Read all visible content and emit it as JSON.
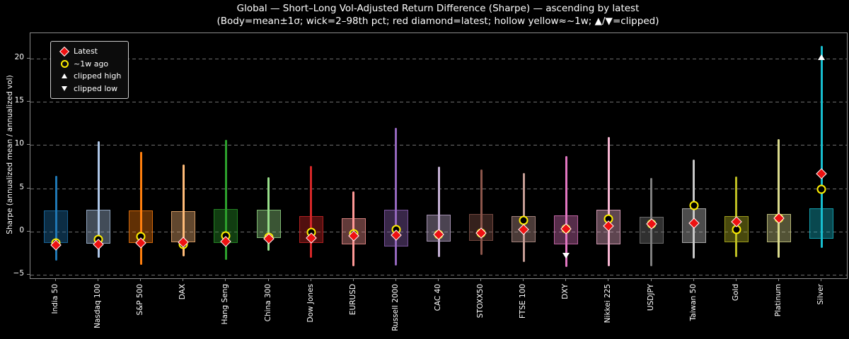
{
  "chart_data": {
    "type": "candlestick",
    "title": "Global — Short–Long Vol-Adjusted Return Difference (Sharpe) — ascending by latest",
    "subtitle": "(Body=mean±1σ; wick=2–98th pct; red diamond=latest; hollow yellow≈~1w; ▲/▼=clipped)",
    "ylabel": "Sharpe (annualized mean / annualized vol)",
    "ylim": [
      -5.4,
      22.9
    ],
    "yticks": [
      -5,
      0,
      5,
      10,
      15,
      20
    ],
    "ytick_labels": [
      "−5",
      "0",
      "5",
      "10",
      "15",
      "20"
    ],
    "grid": "horizontal dashed gray",
    "legend": {
      "position": "upper left",
      "items": [
        {
          "label": "Latest",
          "marker": "red-diamond"
        },
        {
          "label": "~1w ago",
          "marker": "yellow-open-circle"
        },
        {
          "label": "clipped high",
          "marker": "white-up-triangle"
        },
        {
          "label": "clipped low",
          "marker": "white-down-triangle"
        }
      ]
    },
    "marker_colors": {
      "latest": "#ee1111",
      "week_ago": "#ffef00",
      "clipped": "#ffffff"
    },
    "categories": [
      "India 50",
      "Nasdaq 100",
      "S&P 500",
      "DAX",
      "Hang Seng",
      "China 300",
      "Dow Jones",
      "EURUSD",
      "Russell 2000",
      "CAC 40",
      "STOXX50",
      "FTSE 100",
      "DXY",
      "Nikkei 225",
      "USDJPY",
      "Taiwan 50",
      "Gold",
      "Platinum",
      "Silver"
    ],
    "series": [
      {
        "name": "India 50",
        "color": "#1f77b4",
        "wick_low": -3.4,
        "body_low": -1.3,
        "body_high": 2.4,
        "wick_high": 6.4,
        "latest": -1.6,
        "week_ago": -1.3,
        "clipped_high": null,
        "clipped_low": null
      },
      {
        "name": "Nasdaq 100",
        "color": "#aec7e8",
        "wick_low": -3.0,
        "body_low": -1.4,
        "body_high": 2.5,
        "wick_high": 10.4,
        "latest": -1.45,
        "week_ago": -0.9,
        "clipped_high": null,
        "clipped_low": null
      },
      {
        "name": "S&P 500",
        "color": "#ff7f0e",
        "wick_low": -3.85,
        "body_low": -1.3,
        "body_high": 2.4,
        "wick_high": 9.2,
        "latest": -1.35,
        "week_ago": -0.55,
        "clipped_high": null,
        "clipped_low": null
      },
      {
        "name": "DAX",
        "color": "#ffbb78",
        "wick_low": -2.85,
        "body_low": -1.25,
        "body_high": 2.35,
        "wick_high": 7.7,
        "latest": -1.25,
        "week_ago": -1.45,
        "clipped_high": null,
        "clipped_low": null
      },
      {
        "name": "Hang Seng",
        "color": "#2ca02c",
        "wick_low": -3.3,
        "body_low": -1.3,
        "body_high": 2.6,
        "wick_high": 10.6,
        "latest": -1.15,
        "week_ago": -0.5,
        "clipped_high": null,
        "clipped_low": null
      },
      {
        "name": "China 300",
        "color": "#98df8a",
        "wick_low": -2.2,
        "body_low": -0.75,
        "body_high": 2.5,
        "wick_high": 6.25,
        "latest": -0.85,
        "week_ago": -0.7,
        "clipped_high": null,
        "clipped_low": null
      },
      {
        "name": "Dow Jones",
        "color": "#d62728",
        "wick_low": -3.05,
        "body_low": -1.3,
        "body_high": 1.8,
        "wick_high": 7.6,
        "latest": -0.75,
        "week_ago": -0.1,
        "clipped_high": null,
        "clipped_low": null
      },
      {
        "name": "EURUSD",
        "color": "#ff9896",
        "wick_low": -4.0,
        "body_low": -1.5,
        "body_high": 1.55,
        "wick_high": 4.65,
        "latest": -0.5,
        "week_ago": -0.25,
        "clipped_high": null,
        "clipped_low": null
      },
      {
        "name": "Russell 2000",
        "color": "#9467bd",
        "wick_low": -3.9,
        "body_low": -1.75,
        "body_high": 2.55,
        "wick_high": 12.0,
        "latest": -0.4,
        "week_ago": 0.2,
        "clipped_high": null,
        "clipped_low": null
      },
      {
        "name": "CAC 40",
        "color": "#c5b0d5",
        "wick_low": -3.0,
        "body_low": -1.15,
        "body_high": 1.95,
        "wick_high": 7.45,
        "latest": -0.3,
        "week_ago": -0.3,
        "clipped_high": null,
        "clipped_low": null
      },
      {
        "name": "STOXX50",
        "color": "#8c564b",
        "wick_low": -2.7,
        "body_low": -1.05,
        "body_high": 2.0,
        "wick_high": 7.2,
        "latest": -0.2,
        "week_ago": -0.2,
        "clipped_high": null,
        "clipped_low": null
      },
      {
        "name": "FTSE 100",
        "color": "#c49c94",
        "wick_low": -3.5,
        "body_low": -1.25,
        "body_high": 1.8,
        "wick_high": 6.75,
        "latest": 0.2,
        "week_ago": 1.3,
        "clipped_high": null,
        "clipped_low": null
      },
      {
        "name": "DXY",
        "color": "#e377c2",
        "wick_low": -4.1,
        "body_low": -1.5,
        "body_high": 1.85,
        "wick_high": 8.75,
        "latest": 0.35,
        "week_ago": 0.35,
        "clipped_high": null,
        "clipped_low": -2.8
      },
      {
        "name": "Nikkei 225",
        "color": "#f7b6d2",
        "wick_low": -4.0,
        "body_low": -1.5,
        "body_high": 2.5,
        "wick_high": 10.9,
        "latest": 0.65,
        "week_ago": 1.45,
        "clipped_high": null,
        "clipped_low": null
      },
      {
        "name": "USDJPY",
        "color": "#7f7f7f",
        "wick_low": -4.0,
        "body_low": -1.45,
        "body_high": 1.7,
        "wick_high": 6.15,
        "latest": 0.85,
        "week_ago": 0.85,
        "clipped_high": null,
        "clipped_low": null
      },
      {
        "name": "Taiwan 50",
        "color": "#c7c7c7",
        "wick_low": -3.15,
        "body_low": -1.35,
        "body_high": 2.7,
        "wick_high": 8.3,
        "latest": 0.95,
        "week_ago": 3.0,
        "clipped_high": null,
        "clipped_low": null
      },
      {
        "name": "Gold",
        "color": "#bcbd22",
        "wick_low": -3.0,
        "body_low": -1.25,
        "body_high": 1.75,
        "wick_high": 6.35,
        "latest": 1.15,
        "week_ago": 0.2,
        "clipped_high": null,
        "clipped_low": null
      },
      {
        "name": "Platinum",
        "color": "#dbdb8d",
        "wick_low": -3.05,
        "body_low": -1.25,
        "body_high": 2.05,
        "wick_high": 10.65,
        "latest": 1.5,
        "week_ago": 1.55,
        "clipped_high": null,
        "clipped_low": null
      },
      {
        "name": "Silver",
        "color": "#17becf",
        "wick_low": -1.9,
        "body_low": -0.8,
        "body_high": 2.7,
        "wick_high": 21.4,
        "latest": 6.7,
        "week_ago": 4.9,
        "clipped_high": 20.1,
        "clipped_low": null
      }
    ]
  }
}
